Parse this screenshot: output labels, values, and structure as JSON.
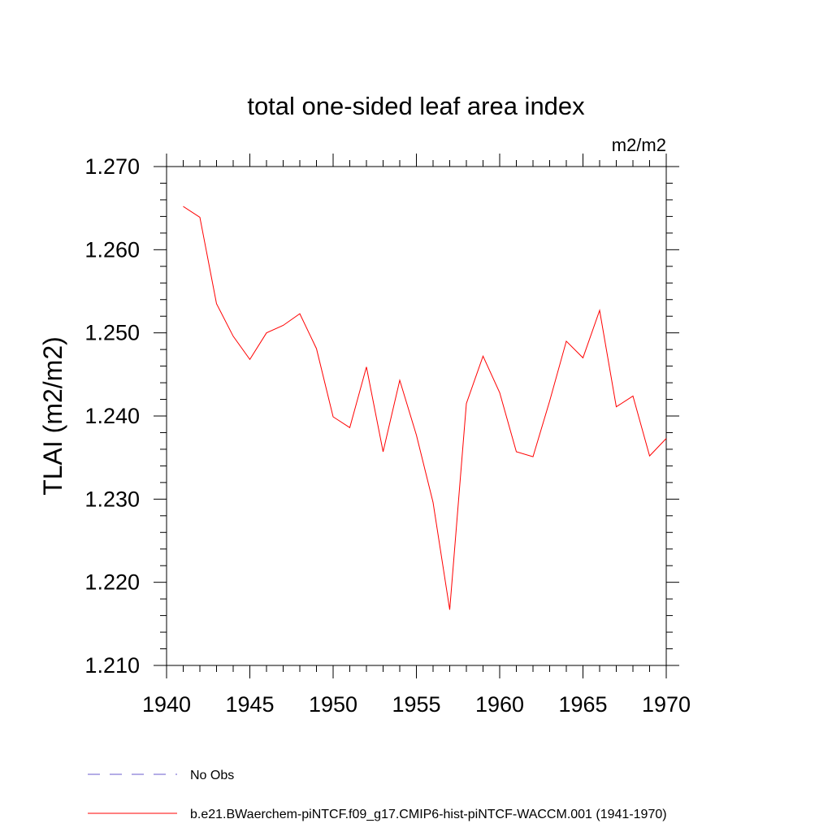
{
  "chart_data": {
    "type": "line",
    "title": "total one-sided leaf area index",
    "units_label": "m2/m2",
    "ylabel": "TLAI  (m2/m2)",
    "xlabel": "",
    "xlim": [
      1940,
      1970
    ],
    "ylim": [
      1.21,
      1.27
    ],
    "x_ticks": [
      1940,
      1945,
      1950,
      1955,
      1960,
      1965,
      1970
    ],
    "x_tick_labels": [
      "1940",
      "1945",
      "1950",
      "1955",
      "1960",
      "1965",
      "1970"
    ],
    "y_ticks": [
      1.21,
      1.22,
      1.23,
      1.24,
      1.25,
      1.26,
      1.27
    ],
    "y_tick_labels": [
      "1.210",
      "1.220",
      "1.230",
      "1.240",
      "1.250",
      "1.260",
      "1.270"
    ],
    "grid": false,
    "legend_position": "bottom",
    "series": [
      {
        "name": "b.e21.BWaerchem-piNTCF.f09_g17.CMIP6-hist-piNTCF-WACCM.001 (1941-1970)",
        "color": "#ff0000",
        "x": [
          1941,
          1942,
          1943,
          1944,
          1945,
          1946,
          1947,
          1948,
          1949,
          1950,
          1951,
          1952,
          1953,
          1954,
          1955,
          1956,
          1957,
          1958,
          1959,
          1960,
          1961,
          1962,
          1963,
          1964,
          1965,
          1966,
          1967,
          1968,
          1969,
          1970
        ],
        "y": [
          1.2652,
          1.2639,
          1.2535,
          1.2496,
          1.2468,
          1.25,
          1.2509,
          1.2523,
          1.2481,
          1.2399,
          1.2386,
          1.2459,
          1.2357,
          1.2443,
          1.2377,
          1.2296,
          1.2167,
          1.2415,
          1.2472,
          1.2428,
          1.2357,
          1.2351,
          1.2418,
          1.249,
          1.247,
          1.2527,
          1.2411,
          1.2424,
          1.2352,
          1.2373
        ]
      }
    ],
    "legend": [
      {
        "label": "No Obs",
        "color": "#6a5acd",
        "style": "dashed"
      },
      {
        "label": "b.e21.BWaerchem-piNTCF.f09_g17.CMIP6-hist-piNTCF-WACCM.001 (1941-1970)",
        "color": "#ff0000",
        "style": "solid"
      }
    ]
  }
}
